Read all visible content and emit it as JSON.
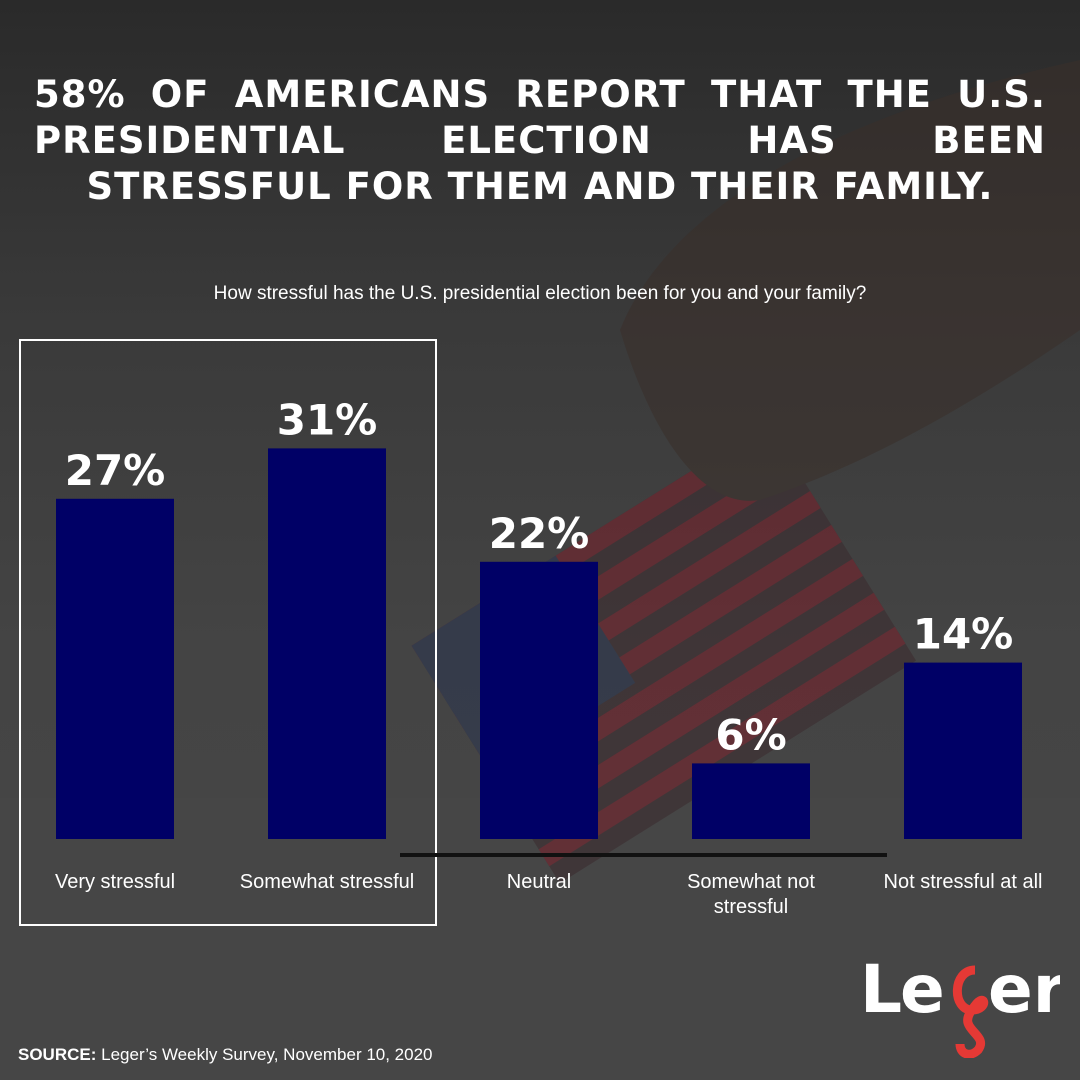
{
  "title": "58% OF AMERICANS REPORT THAT THE U.S. PRESIDENTIAL ELECTION HAS BEEN STRESSFUL FOR THEM AND THEIR FAMILY.",
  "subtitle": "How stressful has the U.S. presidential election been for you and your family?",
  "colors": {
    "bar": "#000066",
    "logo_accent": "#e53935"
  },
  "chart_data": {
    "type": "bar",
    "title": "How stressful has the U.S. presidential election been for you and your family?",
    "categories": [
      "Very stressful",
      "Somewhat stressful",
      "Neutral",
      "Somewhat not stressful",
      "Not stressful at all"
    ],
    "values": [
      27,
      31,
      22,
      6,
      14
    ],
    "value_labels": [
      "27%",
      "31%",
      "22%",
      "6%",
      "14%"
    ],
    "ylim": [
      0,
      31
    ],
    "highlighted_categories": [
      "Very stressful",
      "Somewhat stressful"
    ]
  },
  "logo": {
    "text": "Leger"
  },
  "source": {
    "label": "SOURCE:",
    "text": "Leger’s Weekly Survey, November 10, 2020"
  }
}
